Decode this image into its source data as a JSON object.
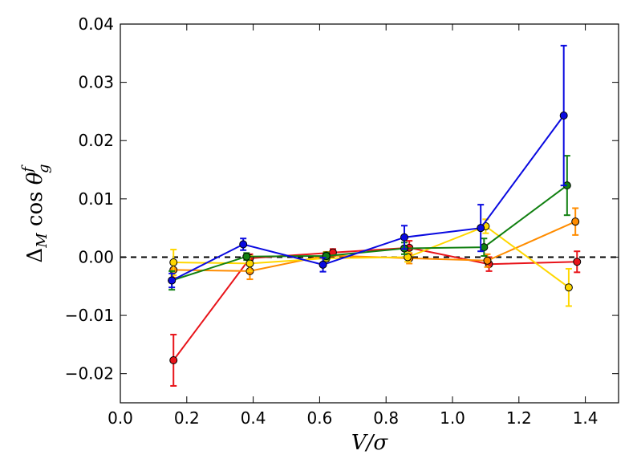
{
  "chart_data": {
    "type": "line",
    "title": "",
    "xlabel": "V/σ",
    "ylabel": "Δ_M cos θ_g^f",
    "ylabel_parts": {
      "delta": "Δ",
      "sub_m": "M",
      "cos": " cos ",
      "theta": "θ",
      "sub_g": "g",
      "sup_f": "f"
    },
    "xlim": [
      0.0,
      1.5
    ],
    "ylim": [
      -0.025,
      0.04
    ],
    "xticks": [
      0.0,
      0.2,
      0.4,
      0.6,
      0.8,
      1.0,
      1.2,
      1.4
    ],
    "xtick_labels": [
      "0.0",
      "0.2",
      "0.4",
      "0.6",
      "0.8",
      "1.0",
      "1.2",
      "1.4"
    ],
    "yticks": [
      -0.02,
      -0.01,
      0.0,
      0.01,
      0.02,
      0.03,
      0.04
    ],
    "ytick_labels": [
      "−0.02",
      "−0.01",
      "0.00",
      "0.01",
      "0.02",
      "0.03",
      "0.04"
    ],
    "grid": false,
    "legend": "none",
    "reference_line": {
      "y": 0.0,
      "style": "dashed",
      "color": "#000000"
    },
    "series": [
      {
        "name": "red",
        "color": "#e8141a",
        "points": [
          {
            "x": 0.16,
            "y": -0.0177,
            "err": 0.0044
          },
          {
            "x": 0.39,
            "y": -0.0002,
            "err": 0.0007
          },
          {
            "x": 0.64,
            "y": 0.0008,
            "err": 0.0006
          },
          {
            "x": 0.87,
            "y": 0.0016,
            "err": 0.0012
          },
          {
            "x": 1.11,
            "y": -0.0012,
            "err": 0.0012
          },
          {
            "x": 1.375,
            "y": -0.0008,
            "err": 0.0018
          }
        ]
      },
      {
        "name": "orange",
        "color": "#ff8c00",
        "points": [
          {
            "x": 0.16,
            "y": -0.0022,
            "err": 0.0013
          },
          {
            "x": 0.39,
            "y": -0.0024,
            "err": 0.0014
          },
          {
            "x": 0.62,
            "y": 0.0003,
            "err": 0.0006
          },
          {
            "x": 0.87,
            "y": -0.0002,
            "err": 0.0009
          },
          {
            "x": 1.105,
            "y": -0.0006,
            "err": 0.0011
          },
          {
            "x": 1.37,
            "y": 0.0061,
            "err": 0.0023
          }
        ]
      },
      {
        "name": "yellow",
        "color": "#ffd700",
        "points": [
          {
            "x": 0.16,
            "y": -0.0009,
            "err": 0.0022
          },
          {
            "x": 0.39,
            "y": -0.0011,
            "err": 0.0013
          },
          {
            "x": 0.62,
            "y": -0.0002,
            "err": 0.0005
          },
          {
            "x": 0.865,
            "y": 0.0,
            "err": 0.0008
          },
          {
            "x": 1.1,
            "y": 0.0053,
            "err": 0.0012
          },
          {
            "x": 1.35,
            "y": -0.0052,
            "err": 0.0032
          }
        ]
      },
      {
        "name": "green",
        "color": "#118011",
        "points": [
          {
            "x": 0.155,
            "y": -0.004,
            "err": 0.0016
          },
          {
            "x": 0.38,
            "y": 0.0001,
            "err": 0.0006
          },
          {
            "x": 0.62,
            "y": 0.0002,
            "err": 0.0006
          },
          {
            "x": 0.855,
            "y": 0.0015,
            "err": 0.001
          },
          {
            "x": 1.095,
            "y": 0.0017,
            "err": 0.0015
          },
          {
            "x": 1.345,
            "y": 0.0123,
            "err": 0.0051
          }
        ]
      },
      {
        "name": "blue",
        "color": "#0a0ae0",
        "points": [
          {
            "x": 0.155,
            "y": -0.004,
            "err": 0.0012
          },
          {
            "x": 0.37,
            "y": 0.0022,
            "err": 0.001
          },
          {
            "x": 0.61,
            "y": -0.0013,
            "err": 0.0012
          },
          {
            "x": 0.855,
            "y": 0.0034,
            "err": 0.002
          },
          {
            "x": 1.085,
            "y": 0.005,
            "err": 0.004
          },
          {
            "x": 1.335,
            "y": 0.0243,
            "err": 0.012
          }
        ]
      }
    ]
  }
}
